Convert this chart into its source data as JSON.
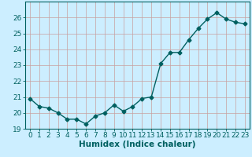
{
  "x": [
    0,
    1,
    2,
    3,
    4,
    5,
    6,
    7,
    8,
    9,
    10,
    11,
    12,
    13,
    14,
    15,
    16,
    17,
    18,
    19,
    20,
    21,
    22,
    23
  ],
  "y": [
    20.9,
    20.4,
    20.3,
    20.0,
    19.6,
    19.6,
    19.3,
    19.8,
    20.0,
    20.5,
    20.1,
    20.4,
    20.9,
    21.0,
    23.1,
    23.8,
    23.8,
    24.6,
    25.3,
    25.9,
    26.3,
    25.9,
    25.7,
    25.6
  ],
  "line_color": "#006060",
  "marker": "D",
  "marker_size": 2.5,
  "linewidth": 1.0,
  "xlabel": "Humidex (Indice chaleur)",
  "ylim": [
    19,
    27
  ],
  "yticks": [
    19,
    20,
    21,
    22,
    23,
    24,
    25,
    26
  ],
  "xticks": [
    0,
    1,
    2,
    3,
    4,
    5,
    6,
    7,
    8,
    9,
    10,
    11,
    12,
    13,
    14,
    15,
    16,
    17,
    18,
    19,
    20,
    21,
    22,
    23
  ],
  "bg_color": "#cceeff",
  "grid_color": "#c8a0a0",
  "tick_color": "#006060",
  "label_color": "#006060",
  "font_size": 6.5,
  "xlabel_fontsize": 7.5
}
